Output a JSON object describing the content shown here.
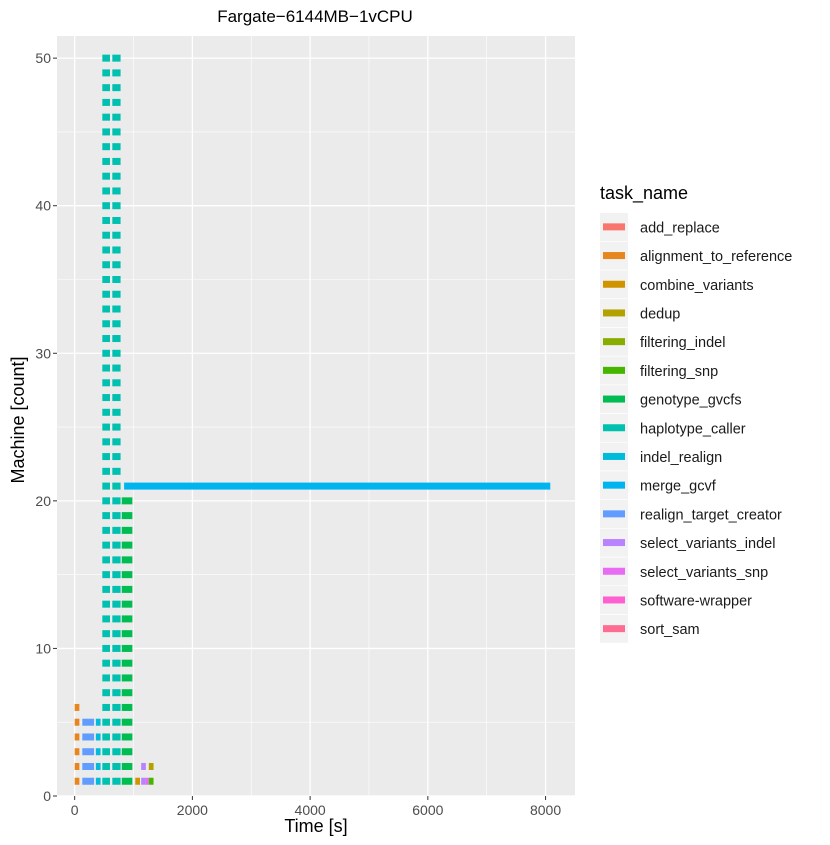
{
  "chart_data": {
    "type": "gantt",
    "title": "Fargate−6144MB−1vCPU",
    "xlabel": "Time [s]",
    "ylabel": "Machine [count]",
    "xlim": [
      -300,
      8500
    ],
    "ylim": [
      0,
      51.5
    ],
    "x_ticks": [
      0,
      2000,
      4000,
      6000,
      8000
    ],
    "y_ticks": [
      0,
      10,
      20,
      30,
      40,
      50
    ],
    "background": "#ebebeb",
    "grid_color": "#ffffff",
    "legend_title": "task_name",
    "legend_position": "right",
    "tasks": [
      {
        "name": "add_replace",
        "color": "#F8766D"
      },
      {
        "name": "alignment_to_reference",
        "color": "#E7851E"
      },
      {
        "name": "combine_variants",
        "color": "#D09400"
      },
      {
        "name": "dedup",
        "color": "#B2A100"
      },
      {
        "name": "filtering_indel",
        "color": "#89AC00"
      },
      {
        "name": "filtering_snp",
        "color": "#45B500"
      },
      {
        "name": "genotype_gvcfs",
        "color": "#00BC51"
      },
      {
        "name": "haplotype_caller",
        "color": "#00C0AF"
      },
      {
        "name": "indel_realign",
        "color": "#00BBDA"
      },
      {
        "name": "merge_gcvf",
        "color": "#00B4EF"
      },
      {
        "name": "realign_target_creator",
        "color": "#619CFF"
      },
      {
        "name": "select_variants_indel",
        "color": "#B983FF"
      },
      {
        "name": "select_variants_snp",
        "color": "#E76BF3"
      },
      {
        "name": "software-wrapper",
        "color": "#FD61D1"
      },
      {
        "name": "sort_sam",
        "color": "#FF6C91"
      }
    ],
    "segments": [
      {
        "task": "alignment_to_reference",
        "machines": [
          1,
          2,
          3,
          4,
          5,
          6
        ],
        "start": 0,
        "end": 80
      },
      {
        "task": "realign_target_creator",
        "machines": [
          1,
          2,
          3,
          4,
          5
        ],
        "start": 130,
        "end": 330
      },
      {
        "task": "indel_realign",
        "machines": [
          1,
          2,
          3,
          4,
          5
        ],
        "start": 360,
        "end": 440
      },
      {
        "task": "haplotype_caller",
        "machines": "1-50",
        "start": 470,
        "end": 600
      },
      {
        "task": "haplotype_caller",
        "machines": "1-50",
        "start": 640,
        "end": 780
      },
      {
        "task": "genotype_gvcfs",
        "machines": "1-20",
        "start": 800,
        "end": 980
      },
      {
        "task": "merge_gcvf",
        "machines": [
          21
        ],
        "start": 840,
        "end": 8080
      },
      {
        "task": "combine_variants",
        "machines": [
          1
        ],
        "start": 1030,
        "end": 1110
      },
      {
        "task": "select_variants_indel",
        "machines": [
          1,
          2
        ],
        "start": 1130,
        "end": 1210
      },
      {
        "task": "select_variants_snp",
        "machines": [
          1
        ],
        "start": 1210,
        "end": 1260
      },
      {
        "task": "dedup",
        "machines": [
          2
        ],
        "start": 1260,
        "end": 1340
      },
      {
        "task": "filtering_snp",
        "machines": [
          1
        ],
        "start": 1260,
        "end": 1340
      }
    ]
  }
}
